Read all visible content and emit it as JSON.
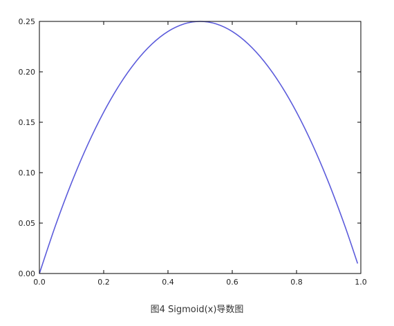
{
  "chart_data": {
    "type": "line",
    "caption": "图4  Sigmoid(x)导数图",
    "xlabel": "",
    "ylabel": "",
    "xlim": [
      0.0,
      1.0
    ],
    "ylim": [
      0.0,
      0.25
    ],
    "x_ticks": [
      "0.0",
      "0.2",
      "0.4",
      "0.6",
      "0.8",
      "1.0"
    ],
    "y_ticks": [
      "0.00",
      "0.05",
      "0.10",
      "0.15",
      "0.20",
      "0.25"
    ],
    "grid": false,
    "legend": "none",
    "series": [
      {
        "color": "#5b5bdb",
        "x": [
          0.0,
          0.05,
          0.1,
          0.15,
          0.2,
          0.25,
          0.3,
          0.35,
          0.4,
          0.45,
          0.5,
          0.55,
          0.6,
          0.65,
          0.7,
          0.75,
          0.8,
          0.85,
          0.9,
          0.95,
          0.99
        ],
        "y": [
          0.0,
          0.0475,
          0.09,
          0.1275,
          0.16,
          0.1875,
          0.21,
          0.2275,
          0.24,
          0.2475,
          0.25,
          0.2475,
          0.24,
          0.2275,
          0.21,
          0.1875,
          0.16,
          0.1275,
          0.09,
          0.0475,
          0.0099
        ]
      }
    ]
  }
}
